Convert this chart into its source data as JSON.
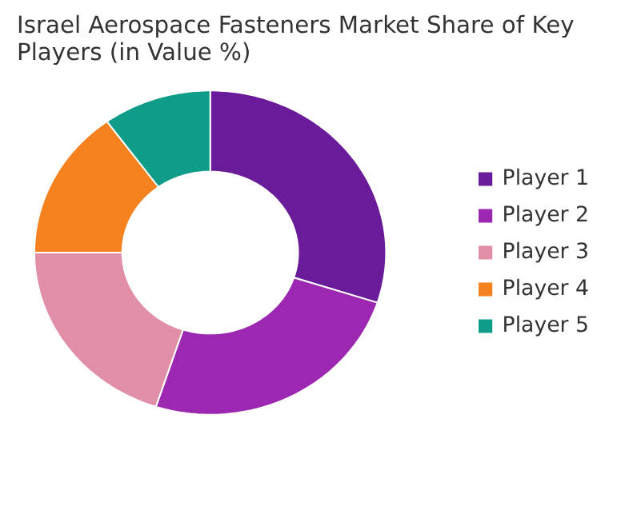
{
  "chart_data": {
    "type": "donut",
    "title": "Israel Aerospace Fasteners Market Share of Key Players (in Value %)",
    "categories": [
      "Player 1",
      "Player 2",
      "Player 3",
      "Player 4",
      "Player 5"
    ],
    "values": [
      30,
      25,
      20,
      15,
      10
    ],
    "colors": [
      "#6a1b9a",
      "#9c27b0",
      "#e08fa6",
      "#f5821f",
      "#0f9d8a"
    ],
    "legend": "right"
  }
}
